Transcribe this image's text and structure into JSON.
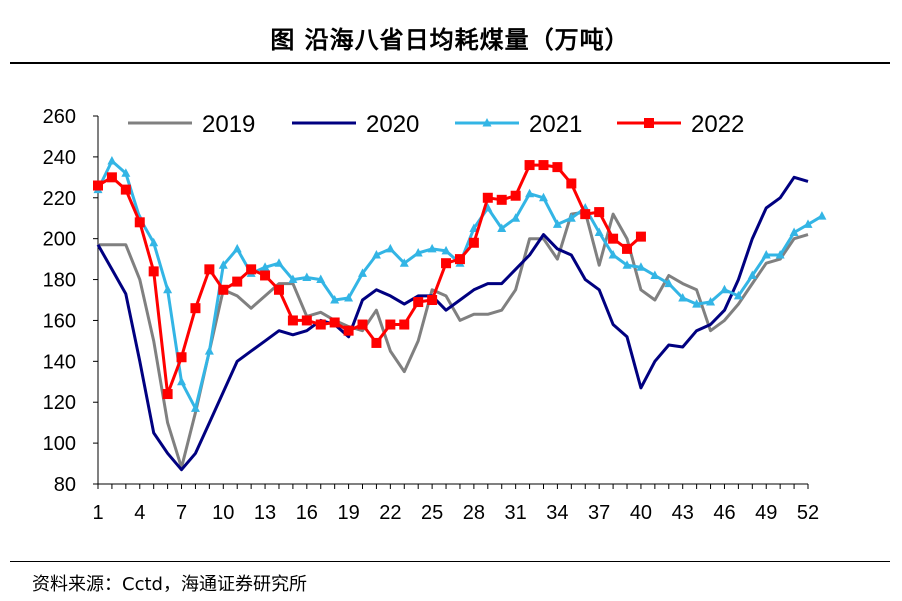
{
  "title": "图  沿海八省日均耗煤量（万吨）",
  "source": "资料来源：Cctd，海通证券研究所",
  "colors": {
    "2019": "#808080",
    "2020": "#000080",
    "2021": "#33b5e5",
    "2022": "#ff0000"
  },
  "chart_data": {
    "type": "line",
    "title": "沿海八省日均耗煤量（万吨）",
    "xlabel": "",
    "ylabel": "",
    "xlim": [
      1,
      52
    ],
    "ylim": [
      80,
      260
    ],
    "xticks": [
      1,
      4,
      7,
      10,
      13,
      16,
      19,
      22,
      25,
      28,
      31,
      34,
      37,
      40,
      43,
      46,
      49,
      52
    ],
    "yticks": [
      80,
      100,
      120,
      140,
      160,
      180,
      200,
      220,
      240,
      260
    ],
    "legend_position": "top",
    "series": [
      {
        "name": "2019",
        "marker": "none",
        "values": [
          197,
          197,
          197,
          180,
          150,
          110,
          88,
          115,
          145,
          175,
          172,
          166,
          172,
          178,
          178,
          162,
          164,
          160,
          157,
          155,
          165,
          145,
          135,
          150,
          175,
          172,
          160,
          163,
          163,
          165,
          175,
          200,
          200,
          190,
          212,
          213,
          187,
          212,
          200,
          175,
          170,
          182,
          178,
          175,
          155,
          160,
          168,
          178,
          188,
          190,
          200,
          202
        ]
      },
      {
        "name": "2020",
        "marker": "none",
        "values": [
          197,
          185,
          173,
          140,
          105,
          95,
          87,
          95,
          110,
          125,
          140,
          145,
          150,
          155,
          153,
          155,
          160,
          158,
          152,
          170,
          175,
          172,
          168,
          172,
          172,
          165,
          170,
          175,
          178,
          178,
          185,
          192,
          202,
          195,
          192,
          180,
          175,
          158,
          152,
          127,
          140,
          148,
          147,
          155,
          158,
          165,
          180,
          200,
          215,
          220,
          230,
          228
        ]
      },
      {
        "name": "2021",
        "marker": "triangle",
        "values": [
          224,
          238,
          232,
          210,
          198,
          175,
          130,
          117,
          145,
          187,
          195,
          183,
          186,
          188,
          180,
          181,
          180,
          170,
          171,
          183,
          192,
          195,
          188,
          193,
          195,
          194,
          188,
          205,
          215,
          205,
          210,
          222,
          220,
          207,
          210,
          215,
          203,
          192,
          187,
          186,
          182,
          178,
          171,
          168,
          169,
          175,
          172,
          182,
          192,
          192,
          203,
          207,
          211
        ]
      },
      {
        "name": "2022",
        "marker": "square",
        "values": [
          226,
          230,
          224,
          208,
          184,
          124,
          142,
          166,
          185,
          175,
          179,
          185,
          182,
          175,
          160,
          160,
          158,
          159,
          155,
          158,
          149,
          158,
          158,
          169,
          170,
          188,
          190,
          198,
          220,
          219,
          221,
          236,
          236,
          235,
          227,
          212,
          213,
          200,
          195,
          201
        ]
      }
    ]
  }
}
